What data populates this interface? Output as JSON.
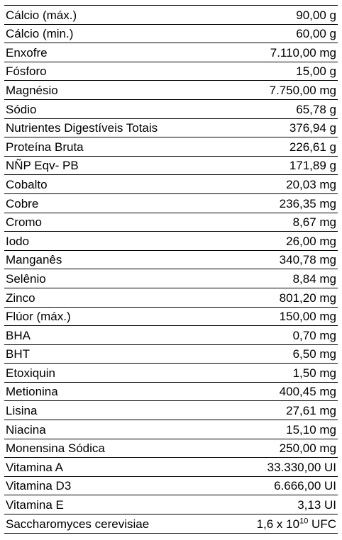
{
  "nutrient_table": {
    "rows": [
      {
        "name": "Cálcio (máx.)",
        "value": "90,00 g"
      },
      {
        "name": "Cálcio (min.)",
        "value": "60,00 g"
      },
      {
        "name": "Enxofre",
        "value": "7.110,00 mg"
      },
      {
        "name": "Fósforo",
        "value": "15,00 g"
      },
      {
        "name": "Magnésio",
        "value": "7.750,00 mg"
      },
      {
        "name": "Sódio",
        "value": "65,78 g"
      },
      {
        "name": "Nutrientes Digestíveis Totais",
        "value": "376,94 g"
      },
      {
        "name": "Proteína Bruta",
        "value": "226,61 g"
      },
      {
        "name": "NÑP Eqv- PB",
        "value": "171,89 g"
      },
      {
        "name": "Cobalto",
        "value": "20,03 mg"
      },
      {
        "name": "Cobre",
        "value": "236,35 mg"
      },
      {
        "name": "Cromo",
        "value": "8,67 mg"
      },
      {
        "name": "Iodo",
        "value": "26,00 mg"
      },
      {
        "name": "Manganês",
        "value": "340,78 mg"
      },
      {
        "name": "Selênio",
        "value": "8,84 mg"
      },
      {
        "name": "Zinco",
        "value": "801,20 mg"
      },
      {
        "name": "Flúor (máx.)",
        "value": "150,00 mg"
      },
      {
        "name": "BHA",
        "value": "0,70 mg"
      },
      {
        "name": "BHT",
        "value": "6,50 mg"
      },
      {
        "name": "Etoxiquin",
        "value": "1,50 mg"
      },
      {
        "name": "Metionina",
        "value": "400,45 mg"
      },
      {
        "name": "Lisina",
        "value": "27,61 mg"
      },
      {
        "name": "Niacina",
        "value": "15,10 mg"
      },
      {
        "name": "Monensina Sódica",
        "value": "250,00 mg"
      },
      {
        "name": "Vitamina A",
        "value": "33.330,00 UI"
      },
      {
        "name": "Vitamina D3",
        "value": "6.666,00 UI"
      },
      {
        "name": "Vitamina E",
        "value": "3,13 UI"
      },
      {
        "name": "Saccharomyces cerevisiae",
        "value_prefix": "1,6 x 10",
        "value_exponent": "10",
        "value_suffix": " UFC"
      }
    ]
  }
}
